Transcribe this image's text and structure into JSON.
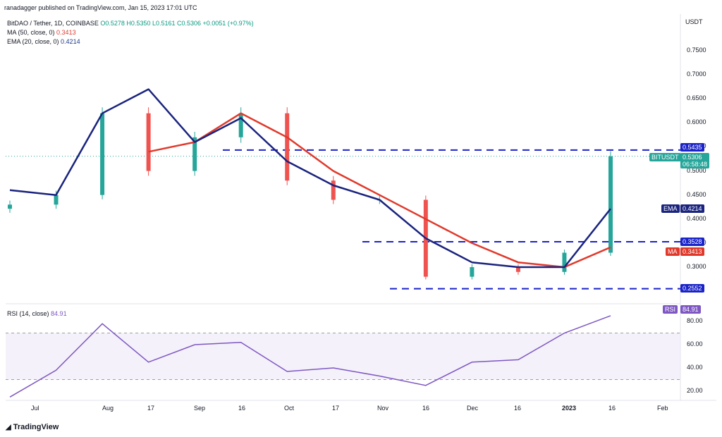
{
  "header": {
    "published": "ranadagger published on TradingView.com, Jan 15, 2023 17:01 UTC",
    "symbol_line": "BitDAO / Tether, 1D, COINBASE",
    "ohlc": "O0.5278 H0.5350 L0.5161 C0.5306 +0.0051 (+0.97%)",
    "ma_label": "MA (50, close, 0)",
    "ma_value": "0.3413",
    "ema_label": "EMA (20, close, 0)",
    "ema_value": "0.4214",
    "rsi_label": "RSI (14, close)",
    "rsi_value": "84.91"
  },
  "price_axis": {
    "unit": "USDT",
    "ticks": [
      "0.7500",
      "0.7000",
      "0.6500",
      "0.6000",
      "0.5500",
      "0.5000",
      "0.4500",
      "0.4000",
      "0.3500",
      "0.3000"
    ]
  },
  "rsi_axis": {
    "ticks": [
      "80.00",
      "60.00",
      "40.00",
      "20.00"
    ]
  },
  "time_axis": [
    "Jul",
    "Aug",
    "17",
    "Sep",
    "16",
    "Oct",
    "17",
    "Nov",
    "16",
    "Dec",
    "16",
    "2023",
    "16",
    "Feb"
  ],
  "tags": {
    "resistance": "0.5435",
    "ticker": "BITUSDT",
    "last": "0.5306",
    "countdown": "06:58:48",
    "ema": "EMA",
    "ema_val": "0.4214",
    "support1": "0.3528",
    "ma": "MA",
    "ma_val": "0.3413",
    "support2": "0.2552",
    "rsi": "RSI",
    "rsi_val": "84.91"
  },
  "footer": {
    "brand": "TradingView"
  },
  "colors": {
    "up": "#26a69a",
    "down": "#ef5350",
    "ema": "#1a237e",
    "ma": "#e0392b",
    "level": "#1a23c8",
    "rsi": "#7e57c2"
  },
  "chart_data": {
    "type": "line",
    "title": "BitDAO / Tether, 1D, COINBASE",
    "ylabel": "USDT",
    "ylim": [
      0.25,
      0.79
    ],
    "x": [
      "Jun 27",
      "Jul 13",
      "Jul 31",
      "Aug 17",
      "Sep 1",
      "Sep 16",
      "Oct 1",
      "Oct 17",
      "Nov 1",
      "Nov 16",
      "Dec 1",
      "Dec 16",
      "Jan 1",
      "Jan 15"
    ],
    "series": [
      {
        "name": "BITUSDT",
        "values": [
          0.43,
          0.45,
          0.62,
          0.5,
          0.57,
          0.62,
          0.48,
          0.44,
          0.44,
          0.28,
          0.3,
          0.29,
          0.33,
          0.5306
        ]
      },
      {
        "name": "EMA (20, close, 0)",
        "values": [
          0.46,
          0.45,
          0.62,
          0.67,
          0.56,
          0.61,
          0.52,
          0.47,
          0.44,
          0.36,
          0.31,
          0.3,
          0.3,
          0.4214
        ]
      },
      {
        "name": "MA (50, close, 0)",
        "values": [
          null,
          null,
          null,
          0.54,
          0.56,
          0.62,
          0.57,
          0.5,
          0.45,
          0.4,
          0.35,
          0.31,
          0.3,
          0.3413
        ]
      }
    ],
    "levels": [
      0.5435,
      0.3528,
      0.2552
    ],
    "rsi": {
      "name": "RSI (14, close)",
      "x": [
        "Jun 27",
        "Jul 13",
        "Jul 31",
        "Aug 17",
        "Sep 1",
        "Sep 16",
        "Oct 1",
        "Oct 17",
        "Nov 1",
        "Nov 16",
        "Dec 1",
        "Dec 16",
        "Jan 1",
        "Jan 15"
      ],
      "values": [
        15,
        38,
        78,
        45,
        60,
        62,
        37,
        40,
        33,
        25,
        45,
        47,
        70,
        84.91
      ],
      "bands": [
        70,
        30
      ],
      "ylim": [
        10,
        88
      ]
    }
  }
}
